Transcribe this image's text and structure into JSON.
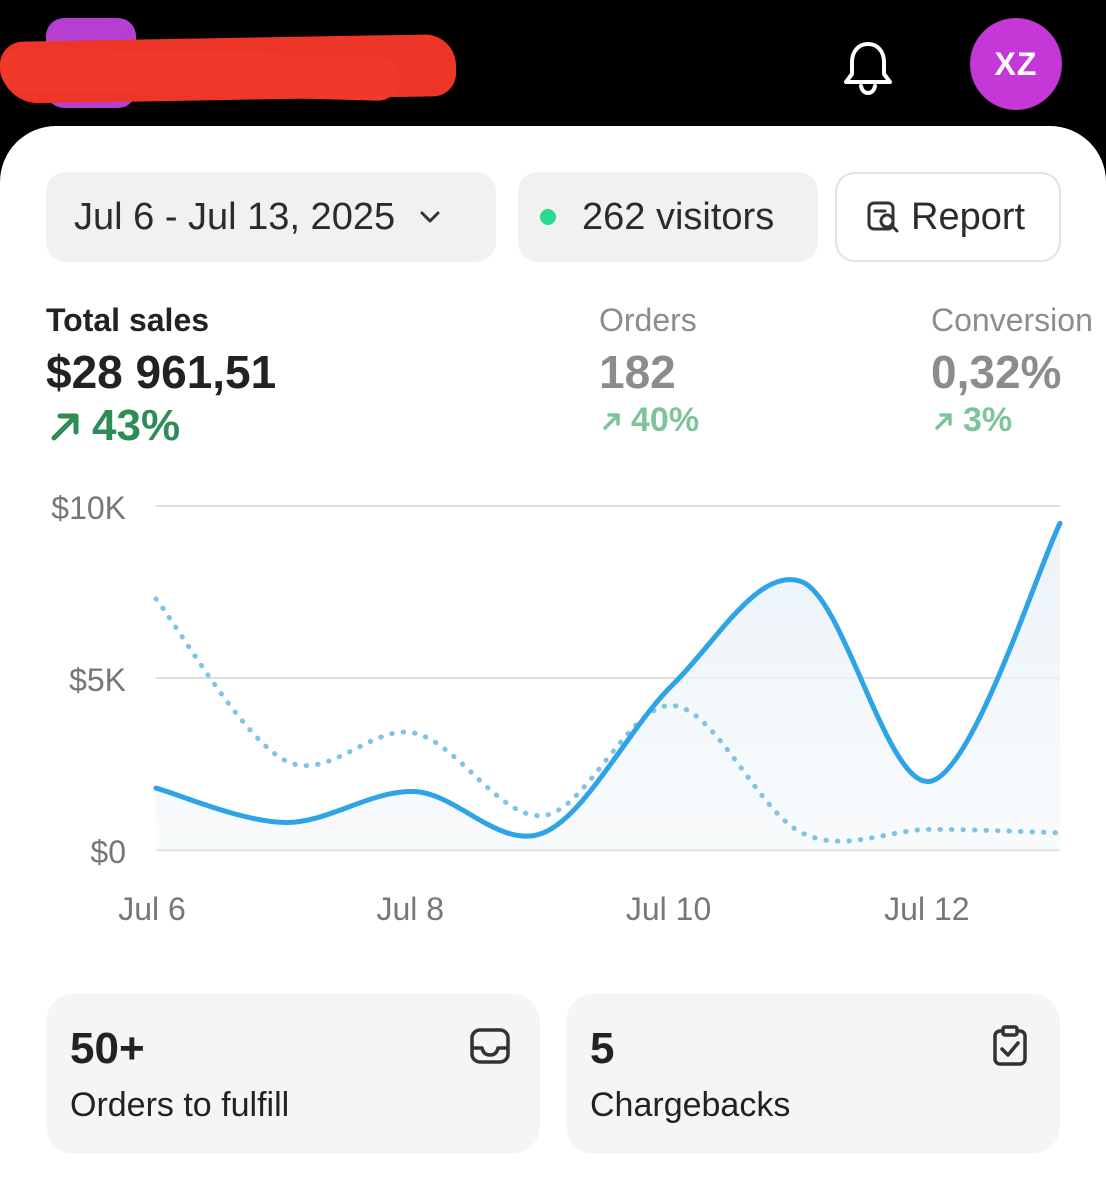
{
  "header": {
    "avatar_initials": "XZ",
    "icons": [
      "bell-icon"
    ]
  },
  "filters": {
    "date_range": "Jul 6 - Jul 13, 2025",
    "visitors": "262 visitors",
    "report_label": "Report"
  },
  "metrics": {
    "sales": {
      "label": "Total sales",
      "value": "$28 961,51",
      "change": "43%"
    },
    "orders": {
      "label": "Orders",
      "value": "182",
      "change": "40%"
    },
    "conversion": {
      "label": "Conversion",
      "value": "0,32%",
      "change": "3%"
    }
  },
  "chart_data": {
    "type": "line",
    "y_tick_labels": [
      "$10K",
      "$5K",
      "$0"
    ],
    "x_tick_labels": [
      "Jul 6",
      "Jul 8",
      "Jul 10",
      "Jul 12"
    ],
    "x": [
      "Jul 6",
      "Jul 7",
      "Jul 8",
      "Jul 9",
      "Jul 10",
      "Jul 11",
      "Jul 12",
      "Jul 13"
    ],
    "ylim": [
      0,
      10000
    ],
    "grid": true,
    "series": [
      {
        "style": "solid",
        "values": [
          1800,
          800,
          1700,
          500,
          4800,
          7800,
          2000,
          9500
        ],
        "color": "#2ea3e6"
      },
      {
        "style": "dotted",
        "values": [
          7300,
          2600,
          3400,
          1000,
          4200,
          500,
          600,
          500
        ],
        "color": "#7fc4e6"
      }
    ]
  },
  "tiles": [
    {
      "count": "50+",
      "caption": "Orders to fulfill",
      "icon": "inbox-tray-icon"
    },
    {
      "count": "5",
      "caption": "Chargebacks",
      "icon": "clipboard-check-icon"
    }
  ],
  "colors": {
    "accent": "#2ea3e6",
    "positive": "#2e8c55",
    "avatar": "#c537d6",
    "online_dot": "#2bd98a"
  }
}
